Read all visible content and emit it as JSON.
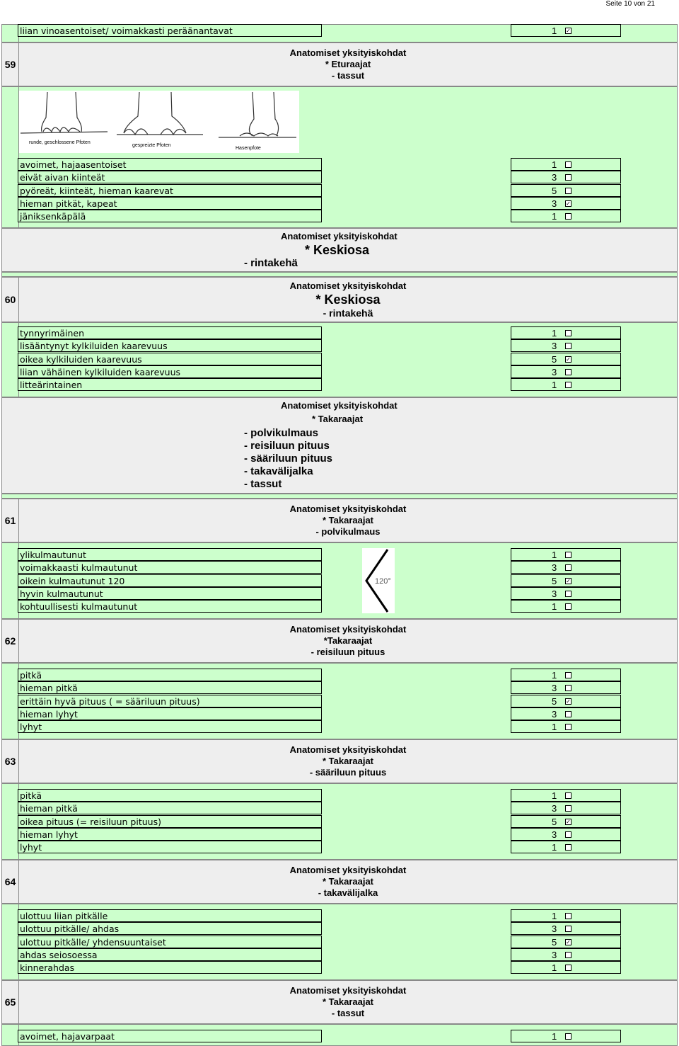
{
  "page": {
    "header": "Seite 10 von 21"
  },
  "check_mark": "✓",
  "top_row": {
    "label": "liian vinoasentoiset/ voimakkasti peräänantavat",
    "score": "1",
    "checked": true
  },
  "sections": {
    "s59": {
      "num": "59",
      "lines": [
        "Anatomiset yksityiskohdat",
        "* Eturaajat",
        "- tassut"
      ],
      "image_captions": [
        "runde, geschlossene Pfoten",
        "gespreizte Pfoten",
        "Hasenpfote"
      ],
      "options": [
        {
          "label": "avoimet, hajaasentoiset",
          "score": "1",
          "checked": false
        },
        {
          "label": "eivät aivan kiinteät",
          "score": "3",
          "checked": false
        },
        {
          "label": "pyöreät,  kiinteät, hieman kaarevat",
          "score": "5",
          "checked": false
        },
        {
          "label": "hieman pitkät, kapeat",
          "score": "3",
          "checked": true
        },
        {
          "label": "jäniksenkäpälä",
          "score": "1",
          "checked": false
        }
      ]
    },
    "keski_head": {
      "title": "Anatomiset yksityiskohdat",
      "subtitle": "* Keskiosa",
      "item": "- rintakehä"
    },
    "s60": {
      "num": "60",
      "title": "Anatomiset yksityiskohdat",
      "subtitle": "* Keskiosa",
      "item": "- rintakehä",
      "options": [
        {
          "label": "tynnyrimäinen",
          "score": "1",
          "checked": false
        },
        {
          "label": "lisääntynyt kylkiluiden kaarevuus",
          "score": "3",
          "checked": false
        },
        {
          "label": "oikea kylkiluiden kaarevuus",
          "score": "5",
          "checked": true
        },
        {
          "label": "liian vähäinen kylkiluiden kaarevuus",
          "score": "3",
          "checked": false
        },
        {
          "label": "litteärintainen",
          "score": "1",
          "checked": false
        }
      ]
    },
    "taka_head": {
      "title": "Anatomiset yksityiskohdat",
      "subtitle": "* Takaraajat",
      "items": [
        "- polvikulmaus",
        "- reisiluun pituus",
        "- sääriluun pituus",
        "- takavälijalka",
        "- tassut"
      ]
    },
    "s61": {
      "num": "61",
      "lines": [
        "Anatomiset yksityiskohdat",
        "* Takaraajat",
        "- polvikulmaus"
      ],
      "angle_label": "120°",
      "options": [
        {
          "label": "ylikulmautunut",
          "score": "1",
          "checked": false
        },
        {
          "label": "voimakkaasti kulmautunut",
          "score": "3",
          "checked": false
        },
        {
          "label": "oikein kulmautunut 120",
          "score": "5",
          "checked": true
        },
        {
          "label": "hyvin kulmautunut",
          "score": "3",
          "checked": false
        },
        {
          "label": "kohtuullisesti kulmautunut",
          "score": "1",
          "checked": false
        }
      ]
    },
    "s62": {
      "num": "62",
      "lines": [
        "Anatomiset yksityiskohdat",
        "*Takaraajat",
        "- reisiluun pituus"
      ],
      "options": [
        {
          "label": "pitkä",
          "score": "1",
          "checked": false
        },
        {
          "label": "hieman pitkä",
          "score": "3",
          "checked": false
        },
        {
          "label": "erittäin hyvä pituus ( = sääriluun pituus)",
          "score": "5",
          "checked": true
        },
        {
          "label": "hieman lyhyt",
          "score": "3",
          "checked": false
        },
        {
          "label": "lyhyt",
          "score": "1",
          "checked": false
        }
      ]
    },
    "s63": {
      "num": "63",
      "lines": [
        "Anatomiset yksityiskohdat",
        "* Takaraajat",
        "- sääriluun pituus"
      ],
      "options": [
        {
          "label": "pitkä",
          "score": "1",
          "checked": false
        },
        {
          "label": "hieman pitkä",
          "score": "3",
          "checked": false
        },
        {
          "label": "oikea pituus (= reisiluun pituus)",
          "score": "5",
          "checked": true
        },
        {
          "label": "hieman lyhyt",
          "score": "3",
          "checked": false
        },
        {
          "label": "lyhyt",
          "score": "1",
          "checked": false
        }
      ]
    },
    "s64": {
      "num": "64",
      "lines": [
        "Anatomiset yksityiskohdat",
        "* Takaraajat",
        "- takavälijalka"
      ],
      "options": [
        {
          "label": "ulottuu liian pitkälle",
          "score": "1",
          "checked": false
        },
        {
          "label": "ulottuu pitkälle/ ahdas",
          "score": "3",
          "checked": false
        },
        {
          "label": "ulottuu pitkälle/ yhdensuuntaiset",
          "score": "5",
          "checked": true
        },
        {
          "label": "ahdas seiosoessa",
          "score": "3",
          "checked": false
        },
        {
          "label": "kinnerahdas",
          "score": "1",
          "checked": false
        }
      ]
    },
    "s65": {
      "num": "65",
      "lines": [
        "Anatomiset yksityiskohdat",
        "* Takaraajat",
        "- tassut"
      ],
      "options": [
        {
          "label": "avoimet, hajavarpaat",
          "score": "1",
          "checked": false
        }
      ]
    }
  }
}
